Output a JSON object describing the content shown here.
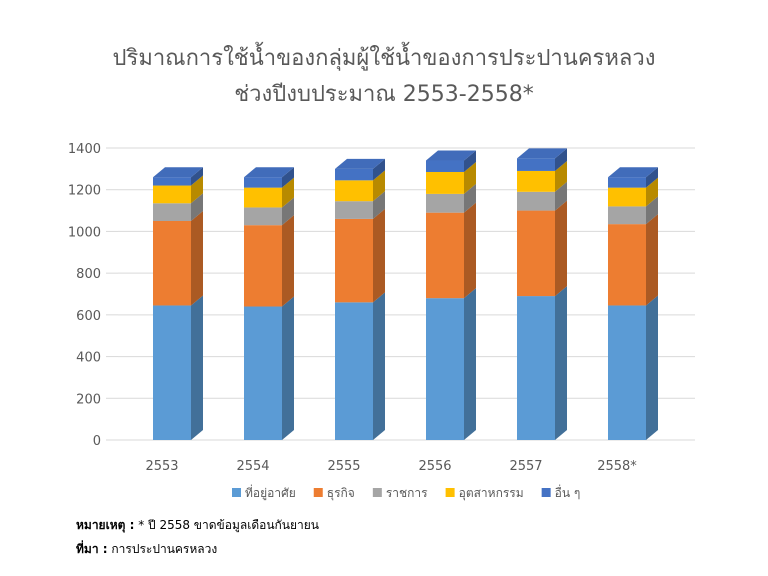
{
  "title_line1": "ปริมาณการใช้น้ำของกลุ่มผู้ใช้น้ำของการประปานครหลวง",
  "title_line2": "ช่วงปีงบประมาณ 2553-2558*",
  "note": {
    "label": "หมายเหตุ :",
    "text": "* ปี 2558 ขาดข้อมูลเดือนกันยายน"
  },
  "source": {
    "label": "ที่มา :",
    "text": "การประปานครหลวง"
  },
  "colors": {
    "residential": "#5b9bd5",
    "business": "#ed7d31",
    "government": "#a5a5a5",
    "industry": "#ffc000",
    "other": "#4472c4",
    "grid": "#d9d9d9",
    "axis_text": "#595959"
  },
  "chart_data": {
    "type": "bar",
    "stacked": true,
    "style": "3d",
    "categories": [
      "2553",
      "2554",
      "2555",
      "2556",
      "2557",
      "2558*"
    ],
    "ylim": [
      0,
      1400
    ],
    "yticks": [
      0,
      200,
      400,
      600,
      800,
      1000,
      1200,
      1400
    ],
    "grid": true,
    "legend_position": "bottom",
    "series": [
      {
        "name": "ที่อยู่อาศัย",
        "key": "residential",
        "values": [
          645,
          640,
          660,
          680,
          690,
          645
        ]
      },
      {
        "name": "ธุรกิจ",
        "key": "business",
        "values": [
          405,
          390,
          400,
          410,
          410,
          390
        ]
      },
      {
        "name": "ราชการ",
        "key": "government",
        "values": [
          85,
          85,
          85,
          90,
          90,
          85
        ]
      },
      {
        "name": "อุตสาหกรรม",
        "key": "industry",
        "values": [
          85,
          95,
          100,
          105,
          100,
          90
        ]
      },
      {
        "name": "อื่น ๆ",
        "key": "other",
        "values": [
          40,
          50,
          55,
          55,
          60,
          50
        ]
      }
    ]
  }
}
